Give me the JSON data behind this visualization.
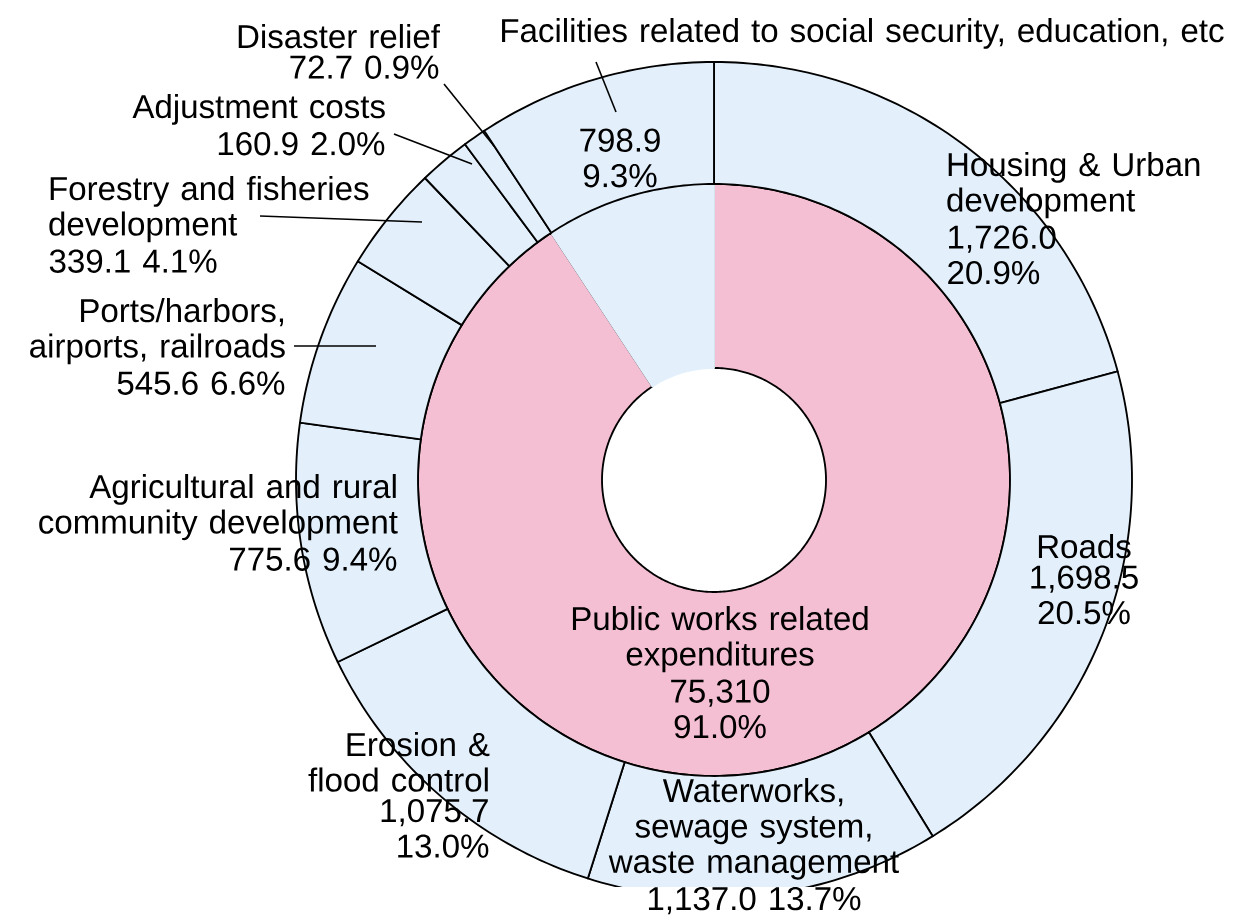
{
  "chart_data": [
    {
      "type": "donut",
      "categories": [
        "Public works related expenditures",
        null
      ],
      "values": [
        91.0,
        9.3
      ],
      "value_labels": [
        "75,310 91.0%",
        null
      ],
      "colors": [
        "#f5bfd3",
        "#e3f0fb"
      ]
    },
    {
      "type": "donut",
      "categories": [
        "Housing & Urban development",
        "Roads",
        "Waterworks, sewage system, waste management",
        "Erosion & flood control",
        "Agricultural and rural community development",
        "Ports/harbors, airports, railroads",
        "Forestry and fisheries development",
        "Adjustment costs",
        "Disaster relief",
        "Facilities related to social security, education, etc"
      ],
      "values": [
        20.9,
        20.5,
        13.7,
        13.0,
        9.4,
        6.6,
        4.1,
        2.0,
        0.9,
        9.3
      ],
      "value_labels": [
        "1,726.0 20.9%",
        "1,698.5 20.5%",
        "1,137.0 13.7%",
        "1,075.7 13.0%",
        "775.6 9.4%",
        "545.6 6.6%",
        "339.1 4.1%",
        "160.9 2.0%",
        "72.7 0.9%",
        "798.9 9.3%"
      ],
      "colors": [
        "#e3f0fb",
        "#e3f0fb",
        "#e3f0fb",
        "#e3f0fb",
        "#e3f0fb",
        "#e3f0fb",
        "#e3f0fb",
        "#e3f0fb",
        "#e3f0fb",
        "#e3f0fb"
      ]
    }
  ]
}
